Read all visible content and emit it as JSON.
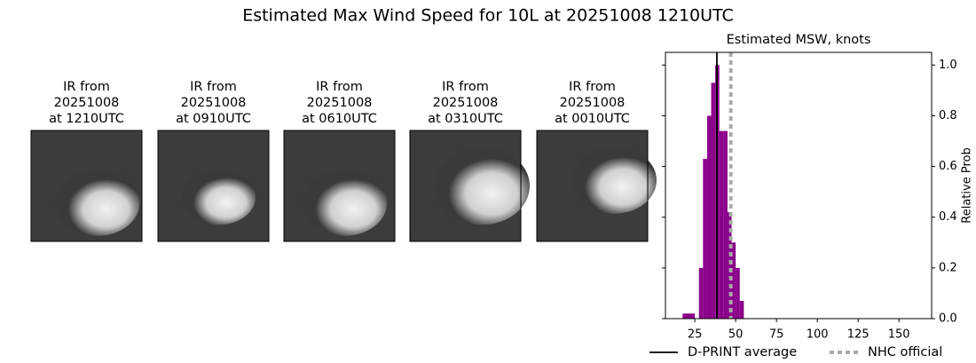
{
  "title": "Estimated Max Wind Speed for 10L at 20251008 1210UTC",
  "panels": [
    {
      "lines": [
        "IR from",
        "20251008",
        "at 1210UTC"
      ]
    },
    {
      "lines": [
        "IR from",
        "20251008",
        "at 0910UTC"
      ]
    },
    {
      "lines": [
        "IR from",
        "20251008",
        "at 0610UTC"
      ]
    },
    {
      "lines": [
        "IR from",
        "20251008",
        "at 0310UTC"
      ]
    },
    {
      "lines": [
        "IR from",
        "20251008",
        "at 0010UTC"
      ]
    }
  ],
  "chart_data": {
    "type": "histogram",
    "title": "Estimated MSW, knots",
    "ylabel": "Relative Prob",
    "bins": [
      17.5,
      25,
      27.5,
      30,
      32.5,
      35,
      37.5,
      40,
      42.5,
      45,
      47.5,
      50,
      52.5,
      55
    ],
    "values": [
      0.02,
      0,
      0.2,
      0.63,
      0.8,
      0.93,
      1.0,
      0.74,
      0.74,
      0.42,
      0.3,
      0.2,
      0.07
    ],
    "color": "#8b008b",
    "xlim": [
      7,
      170
    ],
    "ylim": [
      0,
      1.05
    ],
    "xticks": [
      25,
      50,
      75,
      100,
      125,
      150
    ],
    "yticks": [
      {
        "value": 0,
        "label": "0.0"
      },
      0.2,
      0.4,
      0.6,
      0.8,
      {
        "value": 1,
        "label": "1.0"
      }
    ],
    "lines": [
      {
        "name": "D-PRINT average",
        "value": 38.5,
        "color": "#000000",
        "style": "solid"
      },
      {
        "name": "NHC official",
        "value": 47,
        "color": "#aaaaaa",
        "style": "dotted"
      }
    ]
  }
}
